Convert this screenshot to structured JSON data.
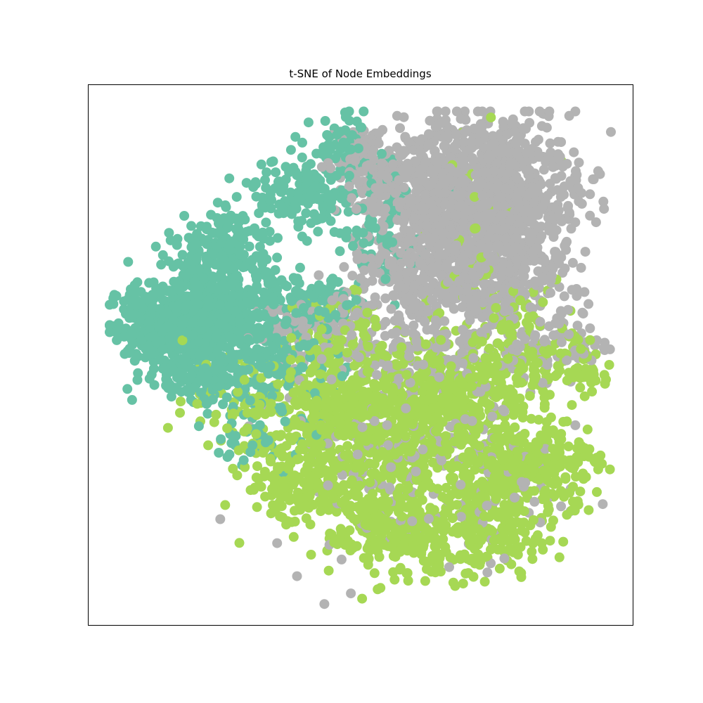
{
  "chart_data": {
    "type": "scatter",
    "title": "t-SNE of Node Embeddings",
    "xlabel": "",
    "ylabel": "",
    "xlim": [
      0,
      100
    ],
    "ylim": [
      0,
      100
    ],
    "show_ticks": false,
    "grid": false,
    "legend": "none",
    "colors": {
      "class_0": "#66c2a5",
      "class_1": "#a6d854",
      "class_2": "#b3b3b3"
    },
    "series": [
      {
        "name": "class_0",
        "color": "#66c2a5",
        "clusters": [
          {
            "x": 13,
            "y": 56,
            "sx": 4.5,
            "sy": 3.5,
            "n": 260
          },
          {
            "x": 21,
            "y": 59,
            "sx": 5,
            "sy": 5,
            "n": 300
          },
          {
            "x": 28,
            "y": 57,
            "sx": 4,
            "sy": 5,
            "n": 240
          },
          {
            "x": 20,
            "y": 47,
            "sx": 5,
            "sy": 3,
            "n": 140
          },
          {
            "x": 26,
            "y": 71,
            "sx": 4,
            "sy": 3,
            "n": 130
          },
          {
            "x": 38,
            "y": 80,
            "sx": 4,
            "sy": 3,
            "n": 90
          },
          {
            "x": 46,
            "y": 79,
            "sx": 6,
            "sy": 4,
            "n": 110
          },
          {
            "x": 47,
            "y": 88,
            "sx": 3,
            "sy": 3,
            "n": 60
          },
          {
            "x": 42,
            "y": 59,
            "sx": 4,
            "sy": 3,
            "n": 120
          },
          {
            "x": 34,
            "y": 49,
            "sx": 6,
            "sy": 4,
            "n": 120
          },
          {
            "x": 33,
            "y": 36,
            "sx": 5,
            "sy": 4,
            "n": 50
          },
          {
            "x": 54,
            "y": 70,
            "sx": 4,
            "sy": 3,
            "n": 35
          }
        ]
      },
      {
        "name": "class_2",
        "color": "#b3b3b3",
        "clusters": [
          {
            "x": 73,
            "y": 84,
            "sx": 8,
            "sy": 6,
            "n": 480
          },
          {
            "x": 78,
            "y": 73,
            "sx": 6,
            "sy": 6,
            "n": 330
          },
          {
            "x": 65,
            "y": 74,
            "sx": 6,
            "sy": 6,
            "n": 330
          },
          {
            "x": 58,
            "y": 82,
            "sx": 6,
            "sy": 4,
            "n": 200
          },
          {
            "x": 60,
            "y": 64,
            "sx": 6,
            "sy": 4,
            "n": 180
          },
          {
            "x": 74,
            "y": 63,
            "sx": 6,
            "sy": 5,
            "n": 200
          },
          {
            "x": 86,
            "y": 52,
            "sx": 5,
            "sy": 3,
            "n": 70
          },
          {
            "x": 64,
            "y": 50,
            "sx": 9,
            "sy": 6,
            "n": 150
          },
          {
            "x": 55,
            "y": 33,
            "sx": 11,
            "sy": 10,
            "n": 130
          },
          {
            "x": 52,
            "y": 86,
            "sx": 3,
            "sy": 3,
            "n": 55
          },
          {
            "x": 48,
            "y": 54,
            "sx": 5,
            "sy": 4,
            "n": 55
          },
          {
            "x": 72,
            "y": 25,
            "sx": 8,
            "sy": 6,
            "n": 60
          },
          {
            "x": 38,
            "y": 54,
            "sx": 5,
            "sy": 4,
            "n": 50
          }
        ]
      },
      {
        "name": "class_1",
        "color": "#a6d854",
        "clusters": [
          {
            "x": 55,
            "y": 36,
            "sx": 9,
            "sy": 7,
            "n": 420
          },
          {
            "x": 67,
            "y": 42,
            "sx": 7,
            "sy": 6,
            "n": 320
          },
          {
            "x": 46,
            "y": 42,
            "sx": 6,
            "sy": 5,
            "n": 220
          },
          {
            "x": 39,
            "y": 26,
            "sx": 5,
            "sy": 4,
            "n": 180
          },
          {
            "x": 52,
            "y": 19,
            "sx": 4,
            "sy": 5,
            "n": 170
          },
          {
            "x": 64,
            "y": 17,
            "sx": 6,
            "sy": 4,
            "n": 170
          },
          {
            "x": 76,
            "y": 19,
            "sx": 5,
            "sy": 4,
            "n": 160
          },
          {
            "x": 84,
            "y": 30,
            "sx": 5,
            "sy": 4,
            "n": 170
          },
          {
            "x": 74,
            "y": 28,
            "sx": 4,
            "sy": 3,
            "n": 120
          },
          {
            "x": 82,
            "y": 48,
            "sx": 5,
            "sy": 4,
            "n": 110
          },
          {
            "x": 78,
            "y": 57,
            "sx": 5,
            "sy": 4,
            "n": 45
          },
          {
            "x": 46,
            "y": 55,
            "sx": 5,
            "sy": 4,
            "n": 65
          },
          {
            "x": 30,
            "y": 42,
            "sx": 6,
            "sy": 5,
            "n": 90
          },
          {
            "x": 72,
            "y": 72,
            "sx": 6,
            "sy": 8,
            "n": 45
          },
          {
            "x": 92,
            "y": 47,
            "sx": 2,
            "sy": 2,
            "n": 25
          }
        ]
      }
    ]
  }
}
